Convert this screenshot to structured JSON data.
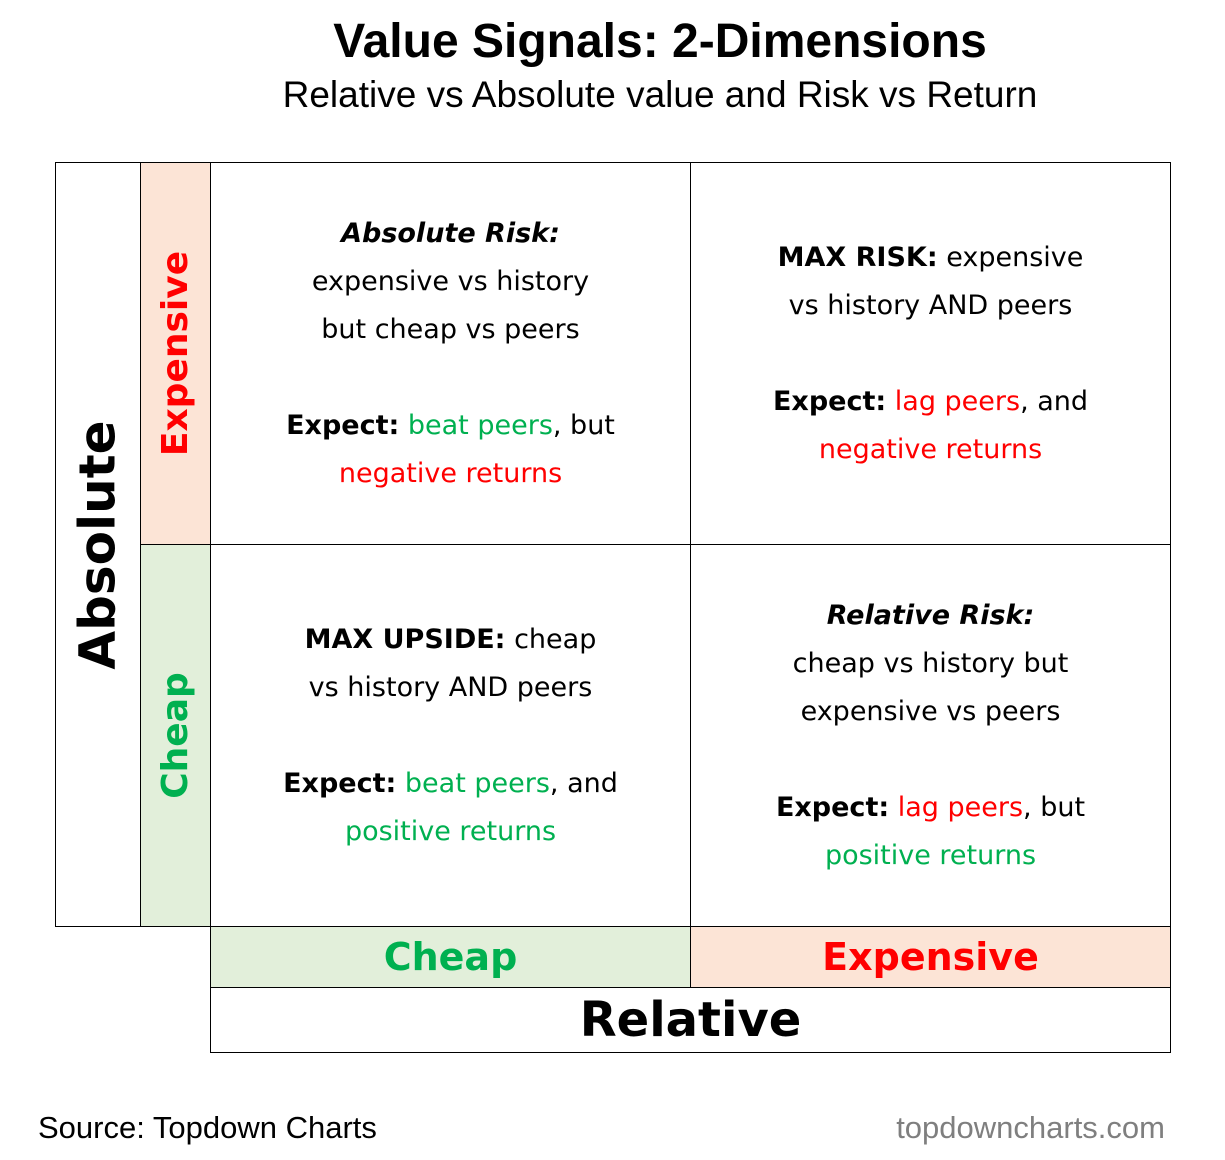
{
  "header": {
    "title": "Value Signals: 2-Dimensions",
    "subtitle": "Relative vs Absolute value and Risk vs Return"
  },
  "axes": {
    "y_title": "Absolute",
    "y_labels": [
      "Expensive",
      "Cheap"
    ],
    "x_title": "Relative",
    "x_labels": [
      "Cheap",
      "Expensive"
    ]
  },
  "quadrants": [
    {
      "title": "Absolute Risk:",
      "body": [
        "expensive vs history",
        "but cheap vs peers"
      ],
      "expect": "Expect:",
      "effect": "beat peers",
      "joiner": ", but",
      "result": "negative returns"
    },
    {
      "title": "MAX RISK:",
      "body": [
        "expensive",
        "vs history AND peers"
      ],
      "expect": "Expect:",
      "effect": "lag peers",
      "joiner": ", and",
      "result": "negative returns"
    },
    {
      "title": "MAX UPSIDE:",
      "body": [
        "cheap",
        "vs history AND peers"
      ],
      "expect": "Expect:",
      "effect": "beat peers",
      "joiner": ", and",
      "result": "positive returns"
    },
    {
      "title": "Relative Risk:",
      "body": [
        "cheap vs history but",
        "expensive vs peers"
      ],
      "expect": "Expect:",
      "effect": "lag peers",
      "joiner": ", but",
      "result": "positive returns"
    }
  ],
  "footer": {
    "source": "Source: Topdown Charts",
    "site": "topdowncharts.com"
  }
}
